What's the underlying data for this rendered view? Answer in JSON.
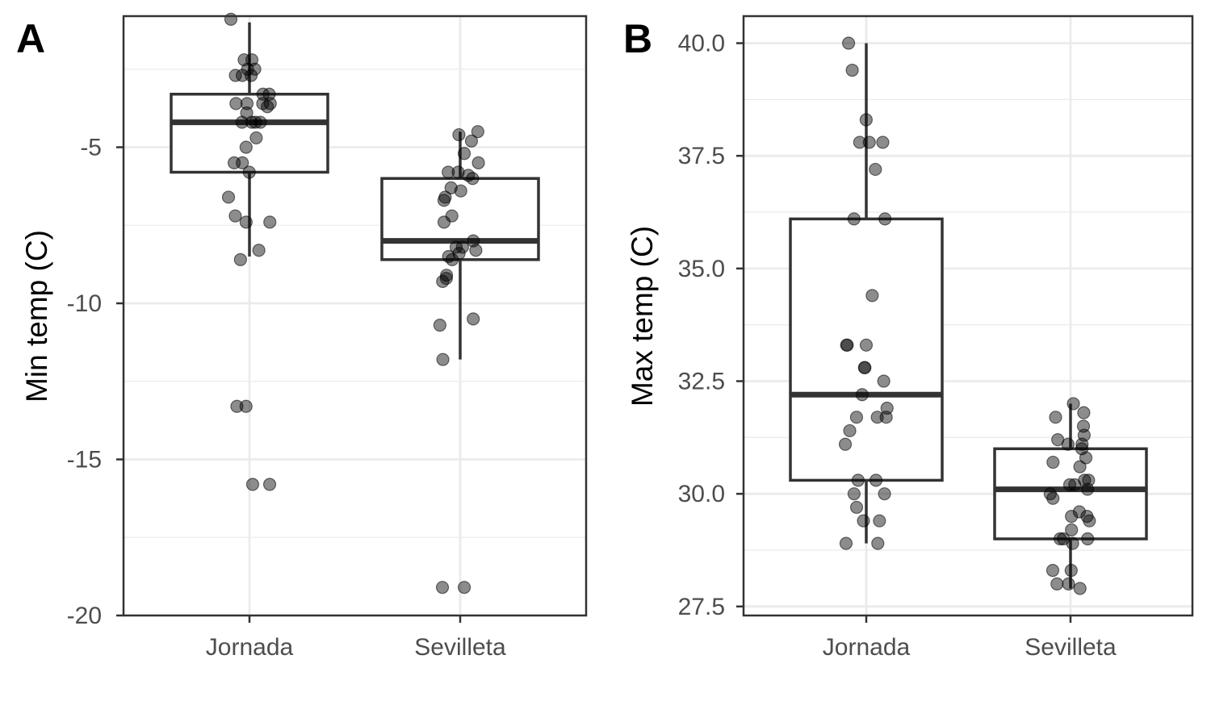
{
  "chart_data": [
    {
      "type": "box",
      "panel_label": "A",
      "title": "",
      "xlabel": "",
      "ylabel": "Min temp (C)",
      "ylim": [
        -20,
        -0.8
      ],
      "yticks": [
        -5,
        -10,
        -15,
        -20
      ],
      "ytick_labels": [
        "-5",
        "-10",
        "-15",
        "-20"
      ],
      "categories": [
        "Jornada",
        "Sevilleta"
      ],
      "boxes": [
        {
          "category": "Jornada",
          "lower_whisker": -8.5,
          "q1": -5.8,
          "median": -4.2,
          "q3": -3.3,
          "upper_whisker": -1.0
        },
        {
          "category": "Sevilleta",
          "lower_whisker": -11.8,
          "q1": -8.6,
          "median": -8.0,
          "q3": -6.0,
          "upper_whisker": -4.5
        }
      ],
      "points": [
        {
          "category": "Jornada",
          "values": [
            -0.9,
            -2.2,
            -2.2,
            -2.5,
            -2.5,
            -2.7,
            -2.7,
            -2.7,
            -3.3,
            -3.3,
            -3.6,
            -3.6,
            -3.6,
            -3.6,
            -3.7,
            -3.9,
            -4.2,
            -4.2,
            -4.2,
            -4.2,
            -4.7,
            -5.0,
            -5.5,
            -5.5,
            -5.8,
            -6.6,
            -7.2,
            -7.4,
            -7.4,
            -8.3,
            -8.6,
            -13.3,
            -13.3,
            -15.8,
            -15.8
          ]
        },
        {
          "category": "Sevilleta",
          "values": [
            -4.5,
            -4.6,
            -4.8,
            -5.2,
            -5.5,
            -5.8,
            -5.8,
            -5.9,
            -6.0,
            -6.3,
            -6.4,
            -6.6,
            -6.7,
            -7.2,
            -7.4,
            -8.0,
            -8.2,
            -8.2,
            -8.3,
            -8.4,
            -8.5,
            -8.6,
            -9.1,
            -9.2,
            -9.3,
            -10.5,
            -10.7,
            -11.8,
            -19.1,
            -19.1
          ]
        }
      ],
      "grid": true
    },
    {
      "type": "box",
      "panel_label": "B",
      "title": "",
      "xlabel": "",
      "ylabel": "Max temp (C)",
      "ylim": [
        27.3,
        40.6
      ],
      "yticks": [
        40.0,
        37.5,
        35.0,
        32.5,
        30.0,
        27.5
      ],
      "ytick_labels": [
        "40.0",
        "37.5",
        "35.0",
        "32.5",
        "30.0",
        "27.5"
      ],
      "categories": [
        "Jornada",
        "Sevilleta"
      ],
      "boxes": [
        {
          "category": "Jornada",
          "lower_whisker": 28.9,
          "q1": 30.3,
          "median": 32.2,
          "q3": 36.1,
          "upper_whisker": 40.0
        },
        {
          "category": "Sevilleta",
          "lower_whisker": 27.9,
          "q1": 29.0,
          "median": 30.1,
          "q3": 31.0,
          "upper_whisker": 32.0
        }
      ],
      "points": [
        {
          "category": "Jornada",
          "values": [
            40.0,
            39.4,
            38.3,
            37.8,
            37.8,
            37.8,
            37.2,
            36.1,
            36.1,
            34.4,
            33.3,
            33.3,
            33.3,
            32.8,
            32.8,
            32.5,
            32.2,
            31.9,
            31.7,
            31.7,
            31.7,
            31.4,
            31.1,
            30.3,
            30.3,
            30.0,
            30.0,
            29.7,
            29.4,
            29.4,
            28.9,
            28.9
          ]
        },
        {
          "category": "Sevilleta",
          "values": [
            32.0,
            31.8,
            31.7,
            31.5,
            31.3,
            31.2,
            31.1,
            31.1,
            31.0,
            30.8,
            30.7,
            30.6,
            30.3,
            30.3,
            30.2,
            30.2,
            30.1,
            30.0,
            29.9,
            29.6,
            29.5,
            29.5,
            29.4,
            29.2,
            29.0,
            29.0,
            29.0,
            28.9,
            28.3,
            28.3,
            28.0,
            28.0,
            27.9
          ]
        }
      ],
      "grid": true
    }
  ]
}
